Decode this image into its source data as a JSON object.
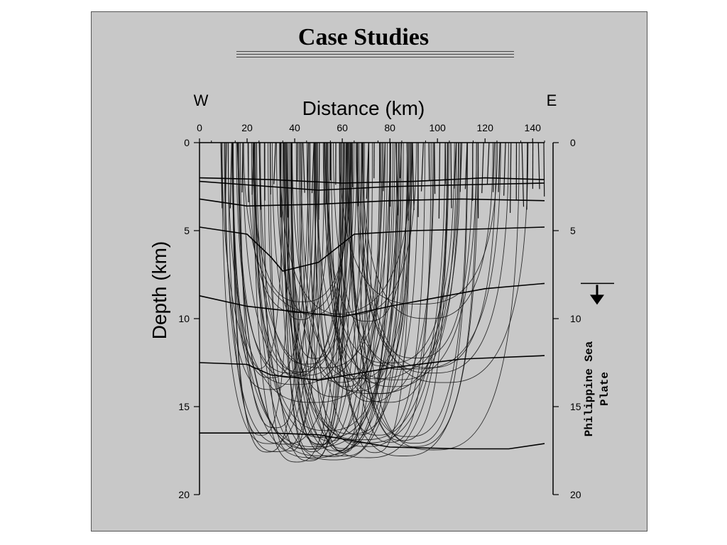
{
  "slide": {
    "title": "Case Studies"
  },
  "chart_data": {
    "type": "line",
    "title": "",
    "xlabel": "Distance (km)",
    "ylabel": "Depth (km)",
    "x_range": [
      0,
      145
    ],
    "y_range": [
      0,
      20
    ],
    "y_inverted": true,
    "x_ticks": [
      0,
      20,
      40,
      60,
      80,
      100,
      120,
      140
    ],
    "y_ticks": [
      0,
      5,
      10,
      15,
      20
    ],
    "left_label": "W",
    "right_label": "E",
    "side_annotation": {
      "text": [
        "Philippine Sea",
        "Plate"
      ],
      "depth": 8.0
    },
    "series": [
      {
        "values": [
          [
            0,
            2.0
          ],
          [
            30,
            2.1
          ],
          [
            60,
            2.3
          ],
          [
            90,
            2.2
          ],
          [
            120,
            2.0
          ],
          [
            145,
            2.1
          ]
        ]
      },
      {
        "values": [
          [
            0,
            2.2
          ],
          [
            20,
            2.4
          ],
          [
            50,
            2.7
          ],
          [
            80,
            2.5
          ],
          [
            110,
            2.4
          ],
          [
            145,
            2.3
          ]
        ]
      },
      {
        "values": [
          [
            0,
            3.2
          ],
          [
            20,
            3.6
          ],
          [
            50,
            3.5
          ],
          [
            80,
            3.3
          ],
          [
            110,
            3.2
          ],
          [
            145,
            3.3
          ]
        ]
      },
      {
        "values": [
          [
            0,
            4.8
          ],
          [
            20,
            5.2
          ],
          [
            30,
            6.5
          ],
          [
            35,
            7.3
          ],
          [
            50,
            6.8
          ],
          [
            65,
            5.2
          ],
          [
            90,
            5.0
          ],
          [
            120,
            4.9
          ],
          [
            145,
            4.8
          ]
        ]
      },
      {
        "values": [
          [
            0,
            8.7
          ],
          [
            20,
            9.3
          ],
          [
            40,
            9.6
          ],
          [
            60,
            9.9
          ],
          [
            80,
            9.3
          ],
          [
            100,
            8.8
          ],
          [
            120,
            8.3
          ],
          [
            145,
            8.0
          ]
        ]
      },
      {
        "values": [
          [
            0,
            12.5
          ],
          [
            20,
            12.6
          ],
          [
            30,
            13.2
          ],
          [
            50,
            13.5
          ],
          [
            80,
            12.8
          ],
          [
            110,
            12.3
          ],
          [
            145,
            12.1
          ]
        ]
      },
      {
        "values": [
          [
            0,
            16.5
          ],
          [
            30,
            16.5
          ],
          [
            50,
            16.6
          ],
          [
            80,
            17.3
          ],
          [
            110,
            17.4
          ],
          [
            130,
            17.4
          ],
          [
            145,
            17.1
          ]
        ]
      }
    ]
  }
}
